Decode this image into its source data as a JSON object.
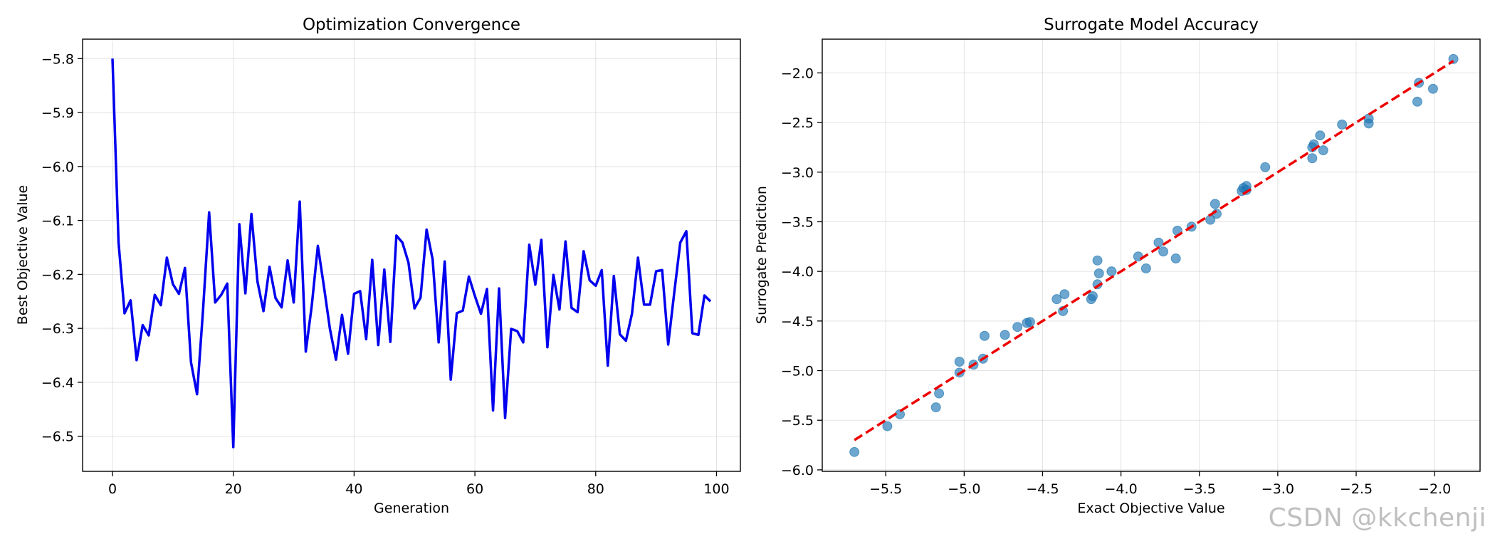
{
  "chart_data": [
    {
      "type": "line",
      "title": "Optimization Convergence",
      "xlabel": "Generation",
      "ylabel": "Best Objective Value",
      "xlim": [
        -4.95,
        103.95
      ],
      "ylim": [
        -6.565,
        -5.764
      ],
      "xticks": [
        0,
        20,
        40,
        60,
        80,
        100
      ],
      "xtick_labels": [
        "0",
        "20",
        "40",
        "60",
        "80",
        "100"
      ],
      "yticks": [
        -6.5,
        -6.4,
        -6.3,
        -6.2,
        -6.1,
        -6.0,
        -5.9,
        -5.8
      ],
      "ytick_labels": [
        "−6.5",
        "−6.4",
        "−6.3",
        "−6.2",
        "−6.1",
        "−6.0",
        "−5.9",
        "−5.8"
      ],
      "grid": true,
      "color": "#0000ee",
      "series": [
        {
          "x": [
            0,
            1,
            2,
            3,
            4,
            5,
            6,
            7,
            8,
            9,
            10,
            11,
            12,
            13,
            14,
            15,
            16,
            17,
            18,
            19,
            20,
            21,
            22,
            23,
            24,
            25,
            26,
            27,
            28,
            29,
            30,
            31,
            32,
            33,
            34,
            35,
            36,
            37,
            38,
            39,
            40,
            41,
            42,
            43,
            44,
            45,
            46,
            47,
            48,
            49,
            50,
            51,
            52,
            53,
            54,
            55,
            56,
            57,
            58,
            59,
            60,
            61,
            62,
            63,
            64,
            65,
            66,
            67,
            68,
            69,
            70,
            71,
            72,
            73,
            74,
            75,
            76,
            77,
            78,
            79,
            80,
            81,
            82,
            83,
            84,
            85,
            86,
            87,
            88,
            89,
            90,
            91,
            92,
            93,
            94,
            95,
            96,
            97,
            98,
            99
          ],
          "y": [
            -5.8,
            -6.14,
            -6.272,
            -6.248,
            -6.359,
            -6.294,
            -6.313,
            -6.238,
            -6.257,
            -6.169,
            -6.218,
            -6.236,
            -6.188,
            -6.363,
            -6.422,
            -6.265,
            -6.085,
            -6.252,
            -6.238,
            -6.217,
            -6.52,
            -6.107,
            -6.235,
            -6.088,
            -6.213,
            -6.268,
            -6.186,
            -6.244,
            -6.261,
            -6.174,
            -6.252,
            -6.065,
            -6.343,
            -6.257,
            -6.147,
            -6.222,
            -6.301,
            -6.358,
            -6.275,
            -6.347,
            -6.236,
            -6.231,
            -6.32,
            -6.173,
            -6.331,
            -6.191,
            -6.325,
            -6.128,
            -6.141,
            -6.178,
            -6.263,
            -6.243,
            -6.117,
            -6.172,
            -6.326,
            -6.176,
            -6.395,
            -6.272,
            -6.267,
            -6.204,
            -6.24,
            -6.273,
            -6.227,
            -6.452,
            -6.226,
            -6.466,
            -6.301,
            -6.305,
            -6.326,
            -6.145,
            -6.219,
            -6.136,
            -6.335,
            -6.201,
            -6.265,
            -6.139,
            -6.262,
            -6.27,
            -6.157,
            -6.211,
            -6.221,
            -6.192,
            -6.369,
            -6.203,
            -6.311,
            -6.323,
            -6.273,
            -6.169,
            -6.256,
            -6.256,
            -6.194,
            -6.192,
            -6.33,
            -6.234,
            -6.141,
            -6.12,
            -6.309,
            -6.312,
            -6.239,
            -6.25
          ]
        }
      ]
    },
    {
      "type": "scatter",
      "title": "Surrogate Model Accuracy",
      "xlabel": "Exact Objective Value",
      "ylabel": "Surrogate Prediction",
      "xlim": [
        -5.905,
        -1.71
      ],
      "ylim": [
        -6.015,
        -1.66
      ],
      "xticks": [
        -5.5,
        -5.0,
        -4.5,
        -4.0,
        -3.5,
        -3.0,
        -2.5,
        -2.0
      ],
      "xtick_labels": [
        "−5.5",
        "−5.0",
        "−4.5",
        "−4.0",
        "−3.5",
        "−3.0",
        "−2.5",
        "−2.0"
      ],
      "yticks": [
        -6.0,
        -5.5,
        -5.0,
        -4.5,
        -4.0,
        -3.5,
        -3.0,
        -2.5,
        -2.0
      ],
      "ytick_labels": [
        "−6.0",
        "−5.5",
        "−5.0",
        "−4.5",
        "−4.0",
        "−3.5",
        "−3.0",
        "−2.5",
        "−2.0"
      ],
      "grid": true,
      "point_color": "#1f77b4",
      "reference_line": {
        "x": [
          -5.7,
          -1.88
        ],
        "y": [
          -5.7,
          -1.88
        ],
        "color": "#ee0000",
        "style": "dashed"
      },
      "points": [
        [
          -5.7,
          -5.82
        ],
        [
          -5.49,
          -5.56
        ],
        [
          -5.41,
          -5.44
        ],
        [
          -5.18,
          -5.37
        ],
        [
          -5.16,
          -5.23
        ],
        [
          -5.03,
          -5.02
        ],
        [
          -5.03,
          -4.91
        ],
        [
          -4.94,
          -4.94
        ],
        [
          -4.88,
          -4.88
        ],
        [
          -4.87,
          -4.65
        ],
        [
          -4.74,
          -4.64
        ],
        [
          -4.66,
          -4.56
        ],
        [
          -4.6,
          -4.52
        ],
        [
          -4.58,
          -4.51
        ],
        [
          -4.41,
          -4.28
        ],
        [
          -4.37,
          -4.4
        ],
        [
          -4.36,
          -4.23
        ],
        [
          -4.19,
          -4.28
        ],
        [
          -4.18,
          -4.25
        ],
        [
          -4.15,
          -4.13
        ],
        [
          -4.15,
          -3.89
        ],
        [
          -4.14,
          -4.02
        ],
        [
          -4.06,
          -4.0
        ],
        [
          -3.89,
          -3.85
        ],
        [
          -3.84,
          -3.97
        ],
        [
          -3.76,
          -3.71
        ],
        [
          -3.73,
          -3.8
        ],
        [
          -3.65,
          -3.87
        ],
        [
          -3.64,
          -3.59
        ],
        [
          -3.55,
          -3.55
        ],
        [
          -3.43,
          -3.48
        ],
        [
          -3.4,
          -3.32
        ],
        [
          -3.39,
          -3.42
        ],
        [
          -3.23,
          -3.19
        ],
        [
          -3.22,
          -3.16
        ],
        [
          -3.2,
          -3.14
        ],
        [
          -3.2,
          -3.18
        ],
        [
          -3.08,
          -2.95
        ],
        [
          -2.78,
          -2.86
        ],
        [
          -2.78,
          -2.75
        ],
        [
          -2.77,
          -2.72
        ],
        [
          -2.73,
          -2.63
        ],
        [
          -2.71,
          -2.78
        ],
        [
          -2.59,
          -2.52
        ],
        [
          -2.42,
          -2.46
        ],
        [
          -2.42,
          -2.51
        ],
        [
          -2.11,
          -2.29
        ],
        [
          -2.1,
          -2.1
        ],
        [
          -2.01,
          -2.16
        ],
        [
          -1.88,
          -1.86
        ]
      ]
    }
  ],
  "watermark": "CSDN @kkchenji"
}
